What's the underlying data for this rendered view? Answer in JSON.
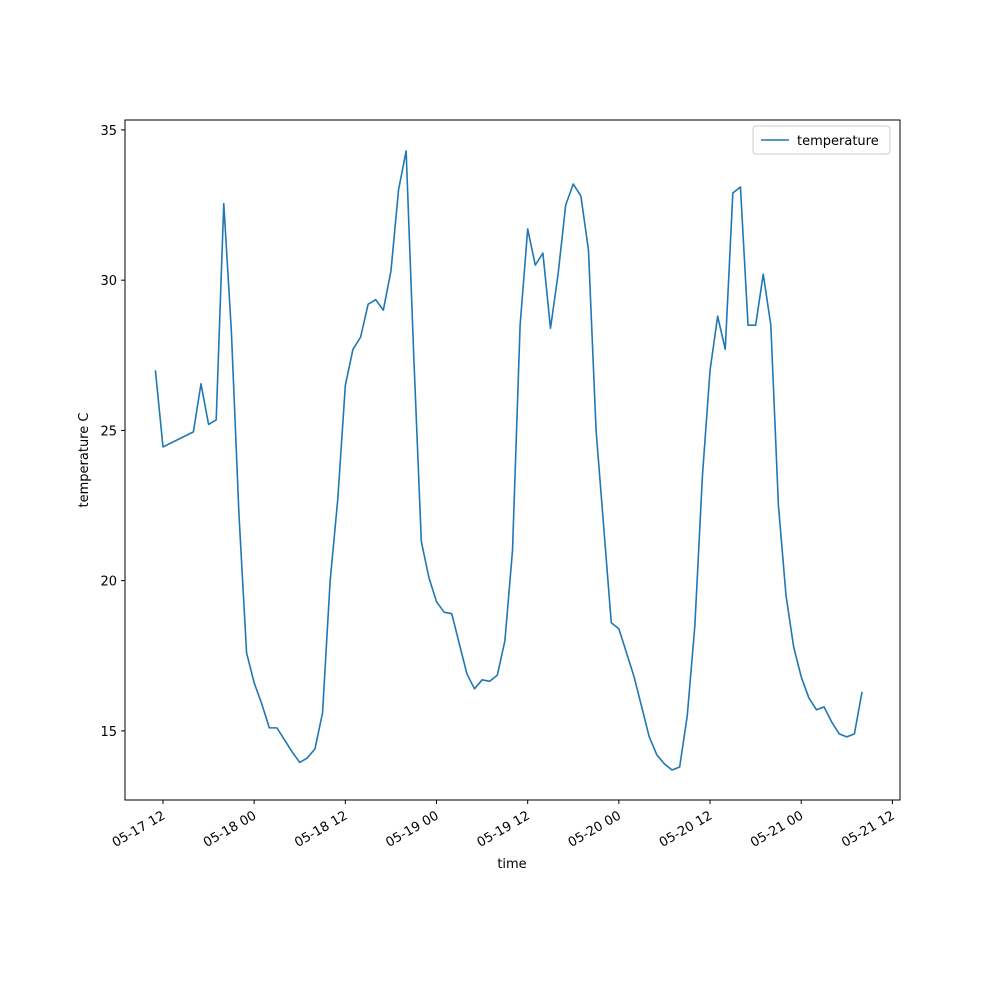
{
  "chart_data": {
    "type": "line",
    "xlabel": "time",
    "ylabel": "temperature C",
    "x": [
      "05-17 11",
      "05-17 12",
      "05-17 16",
      "05-17 17",
      "05-17 18",
      "05-17 19",
      "05-17 20",
      "05-17 21",
      "05-17 22",
      "05-17 23",
      "05-18 00",
      "05-18 01",
      "05-18 02",
      "05-18 03",
      "05-18 04",
      "05-18 05",
      "05-18 06",
      "05-18 07",
      "05-18 08",
      "05-18 09",
      "05-18 10",
      "05-18 11",
      "05-18 12",
      "05-18 13",
      "05-18 14",
      "05-18 15",
      "05-18 16",
      "05-18 17",
      "05-18 18",
      "05-18 19",
      "05-18 20",
      "05-18 21",
      "05-18 22",
      "05-18 23",
      "05-19 00",
      "05-19 01",
      "05-19 02",
      "05-19 03",
      "05-19 04",
      "05-19 05",
      "05-19 06",
      "05-19 07",
      "05-19 08",
      "05-19 09",
      "05-19 10",
      "05-19 11",
      "05-19 12",
      "05-19 13",
      "05-19 14",
      "05-19 15",
      "05-19 16",
      "05-19 17",
      "05-19 18",
      "05-19 19",
      "05-19 20",
      "05-19 21",
      "05-19 22",
      "05-19 23",
      "05-20 00",
      "05-20 01",
      "05-20 02",
      "05-20 03",
      "05-20 04",
      "05-20 05",
      "05-20 06",
      "05-20 07",
      "05-20 08",
      "05-20 09",
      "05-20 10",
      "05-20 11",
      "05-20 12",
      "05-20 13",
      "05-20 14",
      "05-20 15",
      "05-20 16",
      "05-20 17",
      "05-20 18",
      "05-20 19",
      "05-20 20",
      "05-20 21",
      "05-20 22",
      "05-20 23",
      "05-21 00",
      "05-21 01",
      "05-21 02",
      "05-21 03",
      "05-21 04",
      "05-21 05",
      "05-21 06",
      "05-21 07",
      "05-21 08"
    ],
    "series": [
      {
        "name": "temperature",
        "color": "#1f77b4",
        "values": [
          27.0,
          24.45,
          24.95,
          26.55,
          25.2,
          25.35,
          32.55,
          28.3,
          22.2,
          17.6,
          16.6,
          15.9,
          15.1,
          15.1,
          14.7,
          14.3,
          13.95,
          14.1,
          14.4,
          15.6,
          20.0,
          22.7,
          26.5,
          27.7,
          28.1,
          29.2,
          29.35,
          29.0,
          30.3,
          33.0,
          34.3,
          27.5,
          21.3,
          20.1,
          19.3,
          18.95,
          18.9,
          17.9,
          16.9,
          16.4,
          16.7,
          16.65,
          16.85,
          18.0,
          21.0,
          28.5,
          31.7,
          30.5,
          30.9,
          28.4,
          30.2,
          32.5,
          33.2,
          32.8,
          31.0,
          25.0,
          21.8,
          18.6,
          18.4,
          17.6,
          16.8,
          15.8,
          14.8,
          14.2,
          13.9,
          13.7,
          13.8,
          15.5,
          18.5,
          23.5,
          27.0,
          28.8,
          27.7,
          32.9,
          33.1,
          28.5,
          28.5,
          30.2,
          28.5,
          22.5,
          19.5,
          17.8,
          16.8,
          16.1,
          15.7,
          15.8,
          15.3,
          14.9,
          14.8,
          14.9,
          16.3
        ]
      }
    ],
    "xlim": [
      "05-17 07",
      "05-21 13"
    ],
    "xticks": [
      "05-17 12",
      "05-18 00",
      "05-18 12",
      "05-19 00",
      "05-19 12",
      "05-20 00",
      "05-20 12",
      "05-21 00",
      "05-21 12"
    ],
    "ylim": [
      12.7,
      35.33
    ],
    "yticks": [
      15,
      20,
      25,
      30,
      35
    ],
    "legend": "upper right"
  }
}
